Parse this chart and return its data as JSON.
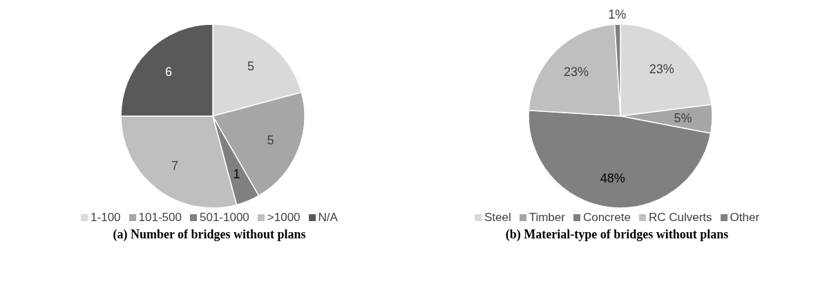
{
  "chart_data": [
    {
      "type": "pie",
      "title": "(a) Number of bridges without plans",
      "categories": [
        "1-100",
        "101-500",
        "501-1000",
        ">1000",
        "N/A"
      ],
      "values": [
        5,
        5,
        1,
        7,
        6
      ],
      "colors": [
        "#d9d9d9",
        "#a6a6a6",
        "#808080",
        "#bfbfbf",
        "#595959"
      ],
      "data_labels": true,
      "legend": "bottom"
    },
    {
      "type": "pie",
      "title": "(b) Material-type of bridges without plans",
      "categories": [
        "Steel",
        "Timber",
        "Concrete",
        "RC Culverts",
        "Other"
      ],
      "values": [
        23,
        5,
        48,
        23,
        1
      ],
      "colors": [
        "#d9d9d9",
        "#a6a6a6",
        "#808080",
        "#bfbfbf",
        "#7f7f7f"
      ],
      "value_labels": [
        "23%",
        "5%",
        "48%",
        "23%",
        "1%"
      ],
      "legend": "bottom"
    }
  ]
}
